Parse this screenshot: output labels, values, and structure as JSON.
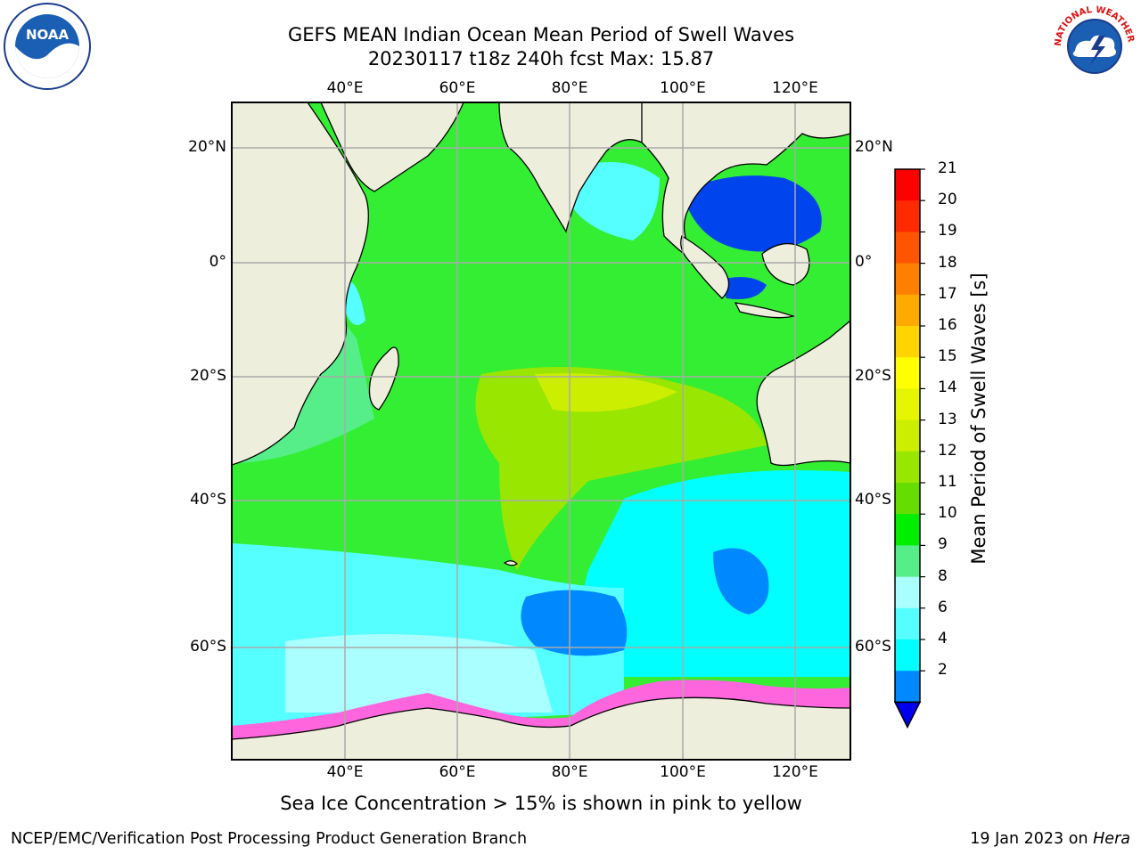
{
  "title": {
    "line1": "GEFS MEAN Indian Ocean Mean Period of Swell Waves",
    "line2": "20230117 t18z 240h fcst   Max: 15.87"
  },
  "axes": {
    "lon_labels": [
      "40°E",
      "60°E",
      "80°E",
      "100°E",
      "120°E"
    ],
    "lat_labels": [
      "20°N",
      "0°",
      "20°S",
      "40°S",
      "60°S"
    ]
  },
  "colorbar": {
    "label": "Mean Period of Swell Waves [s]",
    "ticks": [
      "21",
      "20",
      "19",
      "18",
      "17",
      "16",
      "15",
      "14",
      "13",
      "12",
      "11",
      "10",
      "9",
      "8",
      "6",
      "4",
      "2"
    ],
    "colors": [
      "#ff0000",
      "#ff2a00",
      "#ff5500",
      "#ff8000",
      "#ffaa00",
      "#ffd400",
      "#ffff00",
      "#e6f500",
      "#ccee00",
      "#99e600",
      "#66dd00",
      "#00ee00",
      "#55ee88",
      "#aaffff",
      "#55ffff",
      "#00ffff",
      "#0088ff",
      "#0000ee"
    ]
  },
  "logos": {
    "noaa": "NOAA",
    "nws": "NATIONAL WEATHER SERVICE"
  },
  "footer": {
    "note": "Sea Ice Concentration > 15% is shown in pink to yellow",
    "credit": "NCEP/EMC/Verification Post Processing Product Generation Branch",
    "date": "19 Jan 2023 on",
    "host": "Hera"
  }
}
